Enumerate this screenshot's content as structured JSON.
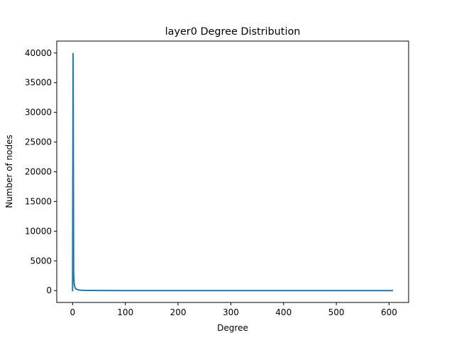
{
  "chart_data": {
    "type": "line",
    "title": "layer0 Degree Distribution",
    "xlabel": "Degree",
    "ylabel": "Number of nodes",
    "xlim": [
      -30,
      637
    ],
    "ylim": [
      -2000,
      42000
    ],
    "xticks": [
      0,
      100,
      200,
      300,
      400,
      500,
      600
    ],
    "yticks": [
      0,
      5000,
      10000,
      15000,
      20000,
      25000,
      30000,
      35000,
      40000
    ],
    "grid": false,
    "legend": "none",
    "series": [
      {
        "color": "#1f77b4",
        "x": [
          0,
          1,
          2,
          3,
          4,
          5,
          6,
          8,
          10,
          15,
          20,
          30,
          50,
          100,
          200,
          300,
          400,
          500,
          606
        ],
        "y": [
          0,
          39900,
          3000,
          1200,
          700,
          450,
          320,
          200,
          130,
          70,
          45,
          25,
          12,
          5,
          2,
          1,
          1,
          1,
          1
        ]
      }
    ]
  }
}
